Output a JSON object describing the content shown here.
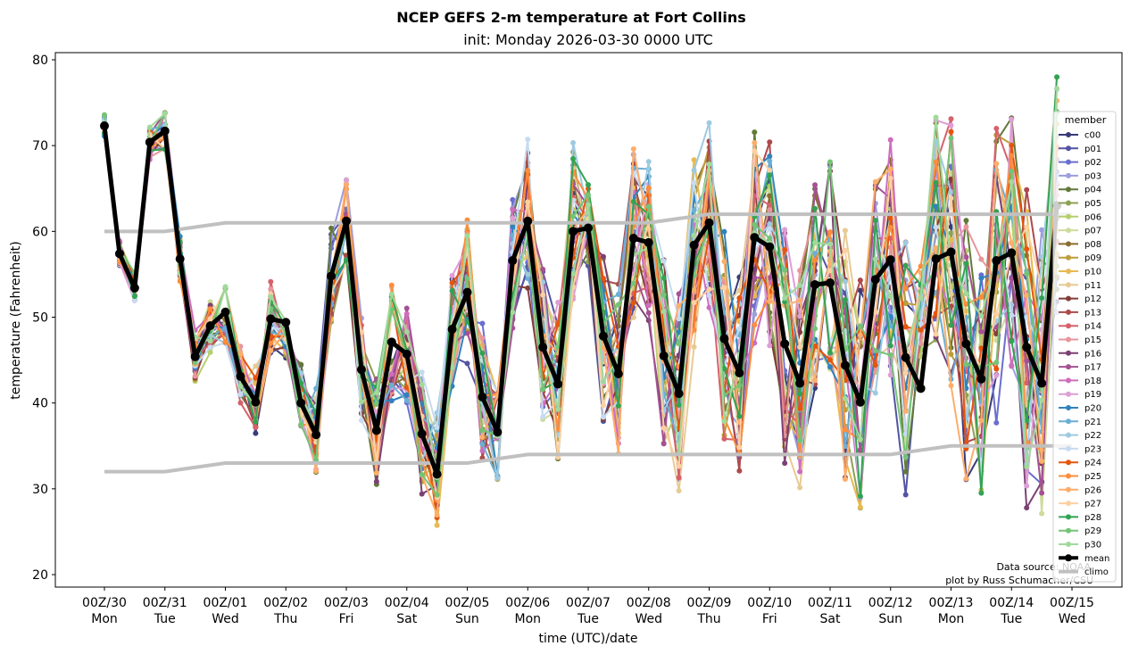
{
  "chart_data": {
    "type": "line",
    "title": "NCEP GEFS 2-m temperature at Fort Collins",
    "subtitle": "init: Monday 2026-03-30 0000 UTC",
    "xlabel": "time (UTC)/date",
    "ylabel": "temperature (Fahrenheit)",
    "ylim": [
      18.5,
      80.7
    ],
    "yticks": [
      20,
      30,
      40,
      50,
      60,
      70,
      80
    ],
    "x_step_hours": 6,
    "x_start": "00Z/30",
    "xticks": [
      {
        "top": "00Z/30",
        "bottom": "Mon"
      },
      {
        "top": "00Z/31",
        "bottom": "Tue"
      },
      {
        "top": "00Z/01",
        "bottom": "Wed"
      },
      {
        "top": "00Z/02",
        "bottom": "Thu"
      },
      {
        "top": "00Z/03",
        "bottom": "Fri"
      },
      {
        "top": "00Z/04",
        "bottom": "Sat"
      },
      {
        "top": "00Z/05",
        "bottom": "Sun"
      },
      {
        "top": "00Z/06",
        "bottom": "Mon"
      },
      {
        "top": "00Z/07",
        "bottom": "Tue"
      },
      {
        "top": "00Z/08",
        "bottom": "Wed"
      },
      {
        "top": "00Z/09",
        "bottom": "Thu"
      },
      {
        "top": "00Z/10",
        "bottom": "Fri"
      },
      {
        "top": "00Z/11",
        "bottom": "Sat"
      },
      {
        "top": "00Z/12",
        "bottom": "Sun"
      },
      {
        "top": "00Z/13",
        "bottom": "Mon"
      },
      {
        "top": "00Z/14",
        "bottom": "Tue"
      },
      {
        "top": "00Z/15",
        "bottom": "Wed"
      }
    ],
    "legend": {
      "title": "member",
      "location": "right",
      "entries": [
        "c00",
        "p01",
        "p02",
        "p03",
        "p04",
        "p05",
        "p06",
        "p07",
        "p08",
        "p09",
        "p10",
        "p11",
        "p12",
        "p13",
        "p14",
        "p15",
        "p16",
        "p17",
        "p18",
        "p19",
        "p20",
        "p21",
        "p22",
        "p23",
        "p24",
        "p25",
        "p26",
        "p27",
        "p28",
        "p29",
        "p30",
        "mean",
        "climo"
      ]
    },
    "member_colors": {
      "c00": "#393b79",
      "p01": "#5254a3",
      "p02": "#6b6ecf",
      "p03": "#9c9ede",
      "p04": "#637939",
      "p05": "#8ca252",
      "p06": "#b5cf6b",
      "p07": "#cedb9c",
      "p08": "#8c6d31",
      "p09": "#bd9e39",
      "p10": "#e7ba52",
      "p11": "#e7cb94",
      "p12": "#843c39",
      "p13": "#ad494a",
      "p14": "#d6616b",
      "p15": "#e7969c",
      "p16": "#7b4173",
      "p17": "#a55194",
      "p18": "#ce6dbd",
      "p19": "#de9ed6",
      "p20": "#3182bd",
      "p21": "#6baed6",
      "p22": "#9ecae1",
      "p23": "#c6dbef",
      "p24": "#e6550d",
      "p25": "#fd8d3c",
      "p26": "#fdae6b",
      "p27": "#fdd0a2",
      "p28": "#31a354",
      "p29": "#74c476",
      "p30": "#a1d99b"
    },
    "mean_color": "#000000",
    "climo_color": "#c0c0c0",
    "series_mean": {
      "name": "mean",
      "values": [
        72.3,
        57.4,
        53.4,
        70.4,
        71.7,
        56.8,
        45.4,
        49.0,
        50.6,
        43.1,
        40.1,
        49.8,
        49.4,
        40.0,
        36.3,
        54.8,
        61.2,
        43.9,
        36.8,
        47.1,
        45.7,
        36.4,
        31.7,
        48.6,
        52.9,
        40.7,
        36.6,
        56.6,
        61.2,
        46.5,
        42.2,
        60.0,
        60.4,
        47.8,
        43.4,
        59.2,
        58.7,
        45.5,
        41.1,
        58.4,
        61.0,
        47.5,
        43.5,
        59.3,
        58.2,
        46.9,
        42.3,
        53.8,
        54.0,
        44.4,
        40.1,
        54.4,
        56.7,
        45.3,
        41.7,
        56.8,
        57.6,
        46.9,
        42.8,
        56.6,
        57.5,
        46.5,
        42.3,
        63.0
      ]
    },
    "series_climo": {
      "name": "climo",
      "x_days": [
        0,
        1,
        2,
        3,
        4,
        5,
        6,
        7,
        8,
        9,
        10,
        11,
        12,
        13,
        14,
        15,
        16
      ],
      "high": [
        60,
        60,
        61,
        61,
        61,
        61,
        61,
        61,
        61,
        61,
        62,
        62,
        62,
        62,
        62,
        62,
        62
      ],
      "low": [
        32,
        32,
        33,
        33,
        33,
        33,
        33,
        34,
        34,
        34,
        34,
        34,
        34,
        34,
        35,
        35,
        35
      ]
    },
    "member_spread_note": "31 ensemble members (c00, p01-p30) plotted as thin colored lines with markers around the mean",
    "annotations": [
      "Data source: NOAA",
      "plot by Russ Schumacher/CSU"
    ]
  }
}
